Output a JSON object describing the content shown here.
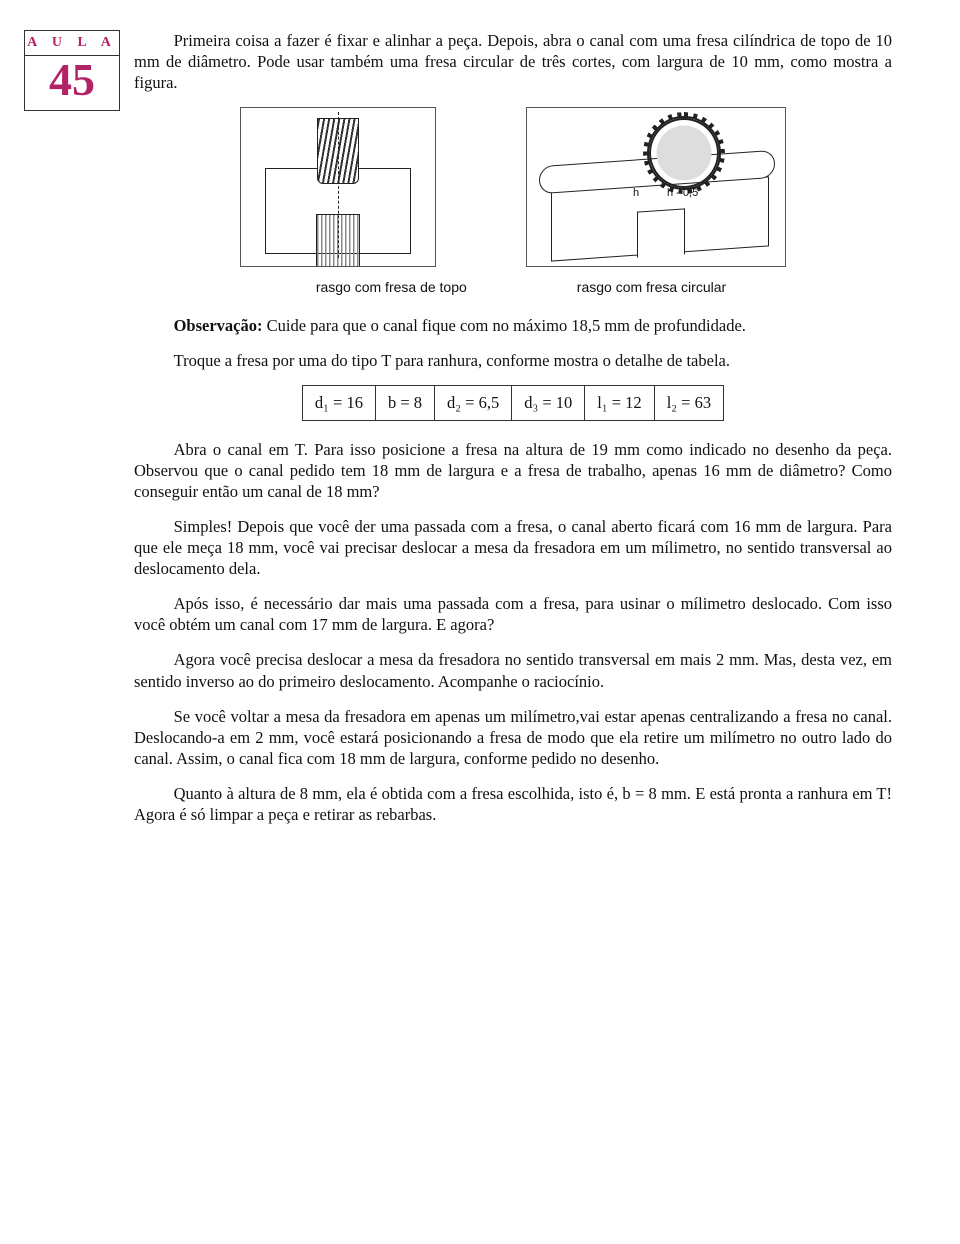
{
  "sidebar": {
    "aula_label": "A U L A",
    "aula_number": "45"
  },
  "p1": "Primeira coisa a fazer é fixar e alinhar a peça. Depois, abra o canal com uma fresa cilíndrica de topo de 10 mm de diâmetro. Pode usar também uma fresa circular de três cortes, com largura de 10 mm, como mostra a figura.",
  "fig2_dim1": "h",
  "fig2_dim2": "h - 0,5",
  "caption1": "rasgo com fresa de topo",
  "caption2": "rasgo com fresa circular",
  "obs_label": "Observação:",
  "obs_text": " Cuide para que o canal fique com no máximo 18,5 mm de profundidade.",
  "p2": "Troque a fresa por uma do tipo T para ranhura, conforme mostra o detalhe de tabela.",
  "table": {
    "c1": "d₁ = 16",
    "c2": "b = 8",
    "c3": "d₂ = 6,5",
    "c4": "d₃ = 10",
    "c5": "l₁ = 12",
    "c6": "l₂ = 63"
  },
  "p3": "Abra o canal em T. Para isso posicione a fresa na altura de 19 mm como indicado no desenho da peça. Observou que o canal pedido tem 18 mm de largura e a fresa de trabalho, apenas 16 mm de diâmetro? Como conseguir então um canal de 18 mm?",
  "p4": "Simples! Depois que você der uma passada com a fresa, o canal aberto ficará com 16 mm de largura. Para que ele meça 18 mm, você vai precisar deslocar a mesa da fresadora em um mílimetro, no sentido transversal ao deslocamento dela.",
  "p5": "Após isso, é necessário dar mais uma passada com a fresa, para usinar o mílimetro deslocado. Com isso você obtém um canal com 17 mm de largura. E agora?",
  "p6": "Agora você precisa deslocar a mesa da fresadora no sentido transversal em mais 2 mm. Mas, desta vez, em sentido inverso ao do primeiro deslocamento. Acompanhe o raciocínio.",
  "p7": "Se você voltar a mesa da fresadora em apenas um milímetro,vai estar apenas centralizando a fresa no canal. Deslocando-a em 2 mm, você estará posicionando a fresa de modo que ela retire um milímetro no outro lado do canal. Assim, o canal fica com 18 mm de largura, conforme pedido no desenho.",
  "p8": "Quanto à altura de 8 mm, ela é obtida com a fresa escolhida, isto é, b = 8 mm. E está pronta a ranhura em T! Agora é só limpar a peça e retirar as rebarbas."
}
